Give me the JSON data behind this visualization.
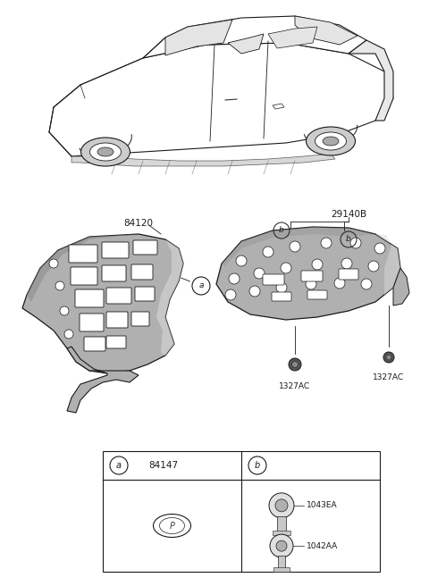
{
  "bg_color": "#ffffff",
  "fig_width": 4.8,
  "fig_height": 6.56,
  "dpi": 100,
  "lc": "#1a1a1a",
  "tc": "#1a1a1a",
  "part_fill": "#b0b0b0",
  "part_dark": "#888888",
  "part_light": "#d8d8d8",
  "fs_label": 7.5,
  "fs_small": 6.5,
  "label_84120": "84120",
  "label_29140B": "29140B",
  "label_1327AC": "1327AC",
  "label_84147": "84147",
  "label_1043EA": "1043EA",
  "label_1042AA": "1042AA"
}
